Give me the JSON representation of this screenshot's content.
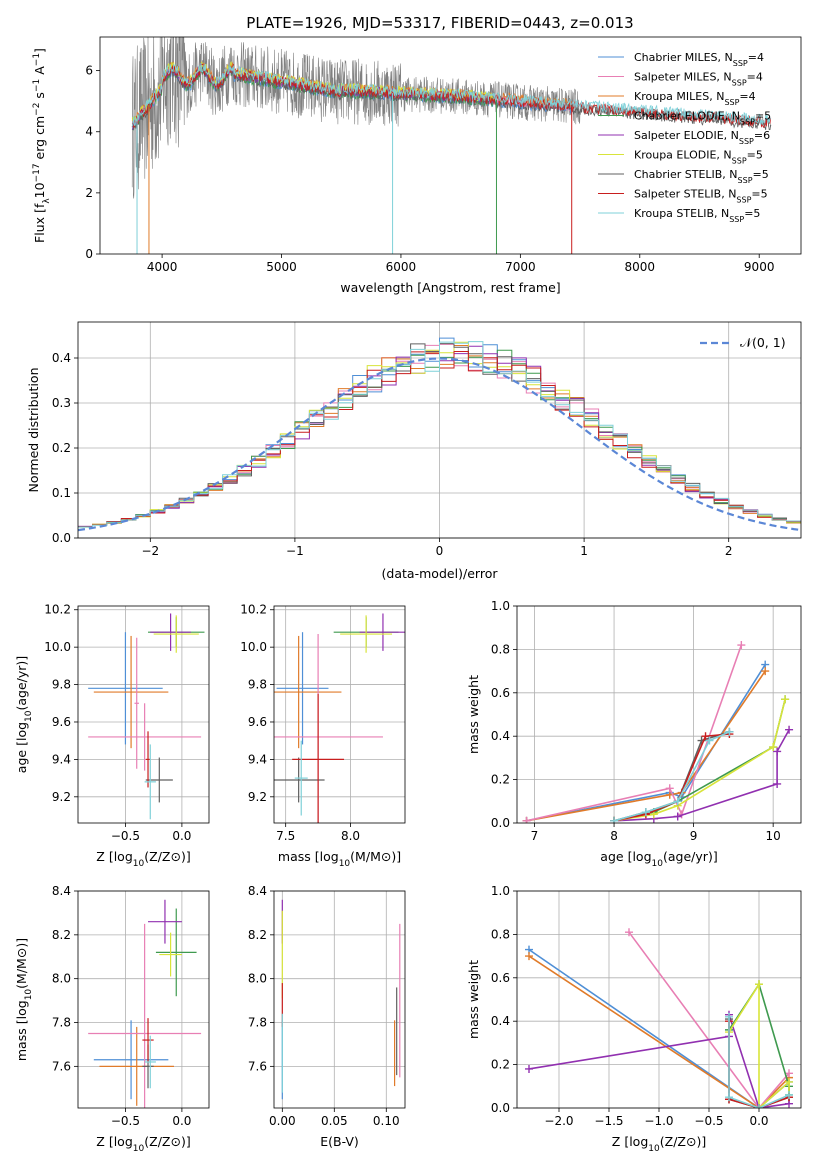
{
  "title": "PLATE=1926, MJD=53317, FIBERID=0443, z=0.013",
  "colors": {
    "chabrier_miles": "#4f8fd6",
    "salpeter_miles": "#e87fb4",
    "kroupa_miles": "#e07b2a",
    "chabrier_elodie": "#3f9a4f",
    "salpeter_elodie": "#9130b0",
    "kroupa_elodie": "#d8e43a",
    "chabrier_stelib": "#606060",
    "salpeter_stelib": "#c81e1e",
    "kroupa_stelib": "#7fd0d8",
    "data": "#808080",
    "normal": "#5b87d6"
  },
  "chart_data": [
    {
      "id": "spectrum",
      "type": "line",
      "xlabel": "wavelength [Angstrom, rest frame]",
      "ylabel": "Flux [f_λ10^-17 erg cm^-2 s^-1 A^-1]",
      "xlim": [
        3480,
        9350
      ],
      "ylim": [
        0,
        7.1
      ],
      "xticks": [
        4000,
        5000,
        6000,
        7000,
        8000,
        9000
      ],
      "yticks": [
        0,
        2,
        4,
        6
      ],
      "x_range": [
        3750,
        9100
      ],
      "legend_position": "upper-right",
      "legend": [
        {
          "name": "Chabrier MILES, N",
          "sub": "SSP",
          "suffix": "=4"
        },
        {
          "name": "Salpeter MILES, N",
          "sub": "SSP",
          "suffix": "=4"
        },
        {
          "name": "Kroupa MILES, N",
          "sub": "SSP",
          "suffix": "=4"
        },
        {
          "name": "Chabrier ELODIE, N",
          "sub": "SSP",
          "suffix": "=5"
        },
        {
          "name": "Salpeter ELODIE, N",
          "sub": "SSP",
          "suffix": "=6"
        },
        {
          "name": "Kroupa ELODIE, N",
          "sub": "SSP",
          "suffix": "=5"
        },
        {
          "name": "Chabrier STELIB, N",
          "sub": "SSP",
          "suffix": "=5"
        },
        {
          "name": "Salpeter STELIB, N",
          "sub": "SSP",
          "suffix": "=5"
        },
        {
          "name": "Kroupa STELIB, N",
          "sub": "SSP",
          "suffix": "=5"
        }
      ]
    },
    {
      "id": "residuals",
      "type": "line",
      "xlabel": "(data-model)/error",
      "ylabel": "Normed distribution",
      "xlim": [
        -2.5,
        2.5
      ],
      "ylim": [
        0,
        0.48
      ],
      "xticks": [
        -2,
        -1,
        0,
        1,
        2
      ],
      "yticks": [
        0.0,
        0.1,
        0.2,
        0.3,
        0.4
      ],
      "legend": "𝒩(0, 1)",
      "legend_position": "upper-right",
      "grid": true,
      "series_step_width": 0.1
    },
    {
      "id": "age_vs_Z",
      "type": "scatter",
      "xlabel": "Z [log10(Z/Z⊙)]",
      "ylabel": "age [log10(age/yr)]",
      "xlim": [
        -0.92,
        0.24
      ],
      "ylim": [
        9.06,
        10.22
      ],
      "xticks": [
        -0.5,
        0.0
      ],
      "yticks": [
        9.2,
        9.4,
        9.6,
        9.8,
        10.0,
        10.2
      ],
      "grid": true,
      "points": [
        {
          "model": "chabrier_miles",
          "x": -0.5,
          "y": 9.78,
          "xerr": 0.33,
          "yerr": 0.3
        },
        {
          "model": "kroupa_miles",
          "x": -0.45,
          "y": 9.76,
          "xerr": 0.33,
          "yerr": 0.3
        },
        {
          "model": "salpeter_miles",
          "x": -0.33,
          "y": 9.52,
          "xerr": 0.5,
          "yerr": 0.18
        },
        {
          "model": "salpeter_miles",
          "x": -0.4,
          "y": 9.7,
          "xerr": 0.02,
          "yerr": 0.35
        },
        {
          "model": "chabrier_elodie",
          "x": -0.05,
          "y": 10.08,
          "xerr": 0.25,
          "yerr": 0.08
        },
        {
          "model": "salpeter_elodie",
          "x": -0.1,
          "y": 10.08,
          "xerr": 0.18,
          "yerr": 0.1
        },
        {
          "model": "kroupa_elodie",
          "x": -0.05,
          "y": 10.07,
          "xerr": 0.2,
          "yerr": 0.1
        },
        {
          "model": "chabrier_stelib",
          "x": -0.2,
          "y": 9.29,
          "xerr": 0.12,
          "yerr": 0.12
        },
        {
          "model": "salpeter_stelib",
          "x": -0.3,
          "y": 9.4,
          "xerr": 0.02,
          "yerr": 0.15
        },
        {
          "model": "kroupa_stelib",
          "x": -0.28,
          "y": 9.28,
          "xerr": 0.05,
          "yerr": 0.2
        }
      ]
    },
    {
      "id": "age_vs_mass",
      "type": "scatter",
      "xlabel": "mass [log10(M/M⊙)]",
      "ylabel": "",
      "xlim": [
        7.41,
        8.42
      ],
      "ylim": [
        9.06,
        10.22
      ],
      "xticks": [
        7.5,
        8.0
      ],
      "yticks": [
        9.2,
        9.4,
        9.6,
        9.8,
        10.0,
        10.2
      ],
      "grid": true,
      "points": [
        {
          "model": "chabrier_miles",
          "x": 7.63,
          "y": 9.78,
          "xerr": 0.2,
          "yerr": 0.3
        },
        {
          "model": "kroupa_miles",
          "x": 7.6,
          "y": 9.76,
          "xerr": 0.33,
          "yerr": 0.3
        },
        {
          "model": "salpeter_miles",
          "x": 7.75,
          "y": 9.52,
          "xerr": 0.5,
          "yerr": 0.55
        },
        {
          "model": "chabrier_elodie",
          "x": 8.12,
          "y": 10.08,
          "xerr": 0.25,
          "yerr": 0.08
        },
        {
          "model": "salpeter_elodie",
          "x": 8.25,
          "y": 10.08,
          "xerr": 0.18,
          "yerr": 0.1
        },
        {
          "model": "kroupa_elodie",
          "x": 8.12,
          "y": 10.07,
          "xerr": 0.2,
          "yerr": 0.1
        },
        {
          "model": "chabrier_stelib",
          "x": 7.6,
          "y": 9.29,
          "xerr": 0.2,
          "yerr": 0.12
        },
        {
          "model": "salpeter_stelib",
          "x": 7.75,
          "y": 9.4,
          "xerr": 0.2,
          "yerr": 0.35
        },
        {
          "model": "kroupa_stelib",
          "x": 7.62,
          "y": 9.3,
          "xerr": 0.05,
          "yerr": 0.2
        }
      ]
    },
    {
      "id": "weight_vs_age",
      "type": "line",
      "xlabel": "age [log10(age/yr)]",
      "ylabel": "mass weight",
      "xlim": [
        6.78,
        10.35
      ],
      "ylim": [
        0,
        1.0
      ],
      "xticks": [
        7,
        8,
        9,
        10
      ],
      "yticks": [
        0.0,
        0.2,
        0.4,
        0.6,
        0.8,
        1.0
      ],
      "grid": true,
      "series": [
        {
          "model": "chabrier_miles",
          "x": [
            6.9,
            8.7,
            8.85,
            9.9
          ],
          "y": [
            0.01,
            0.14,
            0.12,
            0.73
          ]
        },
        {
          "model": "kroupa_miles",
          "x": [
            6.9,
            8.7,
            8.85,
            9.9
          ],
          "y": [
            0.01,
            0.13,
            0.14,
            0.7
          ]
        },
        {
          "model": "salpeter_miles",
          "x": [
            6.9,
            8.7,
            8.85,
            9.6
          ],
          "y": [
            0.01,
            0.16,
            0.04,
            0.82
          ]
        },
        {
          "model": "chabrier_elodie",
          "x": [
            8.0,
            8.5,
            8.8,
            10.0,
            10.15
          ],
          "y": [
            0.01,
            0.05,
            0.1,
            0.35,
            0.57
          ]
        },
        {
          "model": "salpeter_elodie",
          "x": [
            8.0,
            8.5,
            8.8,
            10.05,
            10.05,
            10.2
          ],
          "y": [
            0.01,
            0.02,
            0.03,
            0.18,
            0.33,
            0.43
          ]
        },
        {
          "model": "kroupa_elodie",
          "x": [
            8.0,
            8.5,
            8.8,
            10.0,
            10.15
          ],
          "y": [
            0.01,
            0.04,
            0.08,
            0.35,
            0.57
          ]
        },
        {
          "model": "chabrier_stelib",
          "x": [
            8.0,
            8.4,
            8.8,
            9.1,
            9.45
          ],
          "y": [
            0.01,
            0.05,
            0.1,
            0.38,
            0.42
          ]
        },
        {
          "model": "salpeter_stelib",
          "x": [
            8.0,
            8.4,
            8.8,
            9.15,
            9.45
          ],
          "y": [
            0.01,
            0.04,
            0.1,
            0.4,
            0.41
          ]
        },
        {
          "model": "kroupa_stelib",
          "x": [
            8.0,
            8.4,
            8.8,
            9.2,
            9.45
          ],
          "y": [
            0.01,
            0.05,
            0.1,
            0.38,
            0.42
          ]
        }
      ]
    },
    {
      "id": "mass_vs_Z",
      "type": "scatter",
      "xlabel": "Z [log10(Z/Z⊙)]",
      "ylabel": "mass [log10(M/M⊙)]",
      "xlim": [
        -0.92,
        0.24
      ],
      "ylim": [
        7.41,
        8.4
      ],
      "xticks": [
        -0.5,
        0.0
      ],
      "yticks": [
        7.6,
        7.8,
        8.0,
        8.2,
        8.4
      ],
      "grid": true,
      "points": [
        {
          "model": "chabrier_miles",
          "x": -0.45,
          "y": 7.63,
          "xerr": 0.33,
          "yerr": 0.18
        },
        {
          "model": "kroupa_miles",
          "x": -0.4,
          "y": 7.6,
          "xerr": 0.33,
          "yerr": 0.18
        },
        {
          "model": "salpeter_miles",
          "x": -0.33,
          "y": 7.75,
          "xerr": 0.5,
          "yerr": 0.5
        },
        {
          "model": "chabrier_elodie",
          "x": -0.05,
          "y": 8.12,
          "xerr": 0.18,
          "yerr": 0.2
        },
        {
          "model": "salpeter_elodie",
          "x": -0.15,
          "y": 8.26,
          "xerr": 0.15,
          "yerr": 0.1
        },
        {
          "model": "kroupa_elodie",
          "x": -0.1,
          "y": 8.11,
          "xerr": 0.1,
          "yerr": 0.1
        },
        {
          "model": "chabrier_stelib",
          "x": -0.3,
          "y": 7.6,
          "xerr": 0.05,
          "yerr": 0.1
        },
        {
          "model": "salpeter_stelib",
          "x": -0.3,
          "y": 7.72,
          "xerr": 0.05,
          "yerr": 0.1
        },
        {
          "model": "kroupa_stelib",
          "x": -0.28,
          "y": 7.62,
          "xerr": 0.05,
          "yerr": 0.12
        }
      ]
    },
    {
      "id": "mass_vs_ebv",
      "type": "scatter",
      "xlabel": "E(B-V)",
      "ylabel": "",
      "xlim": [
        -0.008,
        0.118
      ],
      "ylim": [
        7.41,
        8.4
      ],
      "xticks": [
        0.0,
        0.05,
        0.1
      ],
      "xtick_labels": [
        "0.00",
        "0.05",
        "0.10"
      ],
      "yticks": [
        7.6,
        7.8,
        8.0,
        8.2,
        8.4
      ],
      "grid": true,
      "points": [
        {
          "model": "chabrier_miles",
          "x": 0.0,
          "y": 7.63,
          "yerr": 0.18
        },
        {
          "model": "salpeter_elodie",
          "x": 0.0,
          "y": 8.26,
          "yerr": 0.1
        },
        {
          "model": "kroupa_elodie",
          "x": 0.0,
          "y": 8.11,
          "yerr": 0.2
        },
        {
          "model": "salpeter_stelib",
          "x": 0.0,
          "y": 7.88,
          "yerr": 0.1
        },
        {
          "model": "kroupa_stelib",
          "x": 0.0,
          "y": 7.66,
          "yerr": 0.18
        },
        {
          "model": "kroupa_miles",
          "x": 0.108,
          "y": 7.66,
          "yerr": 0.15
        },
        {
          "model": "chabrier_stelib",
          "x": 0.11,
          "y": 7.76,
          "yerr": 0.2
        },
        {
          "model": "salpeter_miles",
          "x": 0.113,
          "y": 7.9,
          "yerr": 0.35
        }
      ]
    },
    {
      "id": "weight_vs_Z",
      "type": "line",
      "xlabel": "Z [log10(Z/Z⊙)]",
      "ylabel": "mass weight",
      "xlim": [
        -2.42,
        0.42
      ],
      "ylim": [
        0,
        1.0
      ],
      "xticks": [
        -2.0,
        -1.5,
        -1.0,
        -0.5,
        0.0
      ],
      "yticks": [
        0.0,
        0.2,
        0.4,
        0.6,
        0.8,
        1.0
      ],
      "grid": true,
      "series": [
        {
          "model": "chabrier_miles",
          "x": [
            -2.3,
            0.0,
            0.3
          ],
          "y": [
            0.73,
            0.0,
            0.12
          ]
        },
        {
          "model": "kroupa_miles",
          "x": [
            -2.3,
            0.0,
            0.3
          ],
          "y": [
            0.7,
            0.0,
            0.14
          ]
        },
        {
          "model": "salpeter_miles",
          "x": [
            -1.3,
            0.0,
            0.3
          ],
          "y": [
            0.81,
            0.0,
            0.16
          ]
        },
        {
          "model": "salpeter_elodie",
          "x": [
            -2.3,
            -0.3,
            -0.3,
            0.0,
            0.3,
            0.3
          ],
          "y": [
            0.18,
            0.33,
            0.43,
            0.0,
            0.02,
            0.05
          ]
        },
        {
          "model": "chabrier_elodie",
          "x": [
            -0.3,
            0.0,
            0.3,
            0.3
          ],
          "y": [
            0.36,
            0.57,
            0.1,
            0.06
          ]
        },
        {
          "model": "kroupa_elodie",
          "x": [
            -0.3,
            0.0,
            0.0,
            0.3,
            0.3
          ],
          "y": [
            0.35,
            0.57,
            0.0,
            0.12,
            0.05
          ]
        },
        {
          "model": "chabrier_stelib",
          "x": [
            -0.3,
            -0.3,
            0.0,
            0.3
          ],
          "y": [
            0.41,
            0.04,
            0.0,
            0.05
          ]
        },
        {
          "model": "salpeter_stelib",
          "x": [
            -0.3,
            -0.3,
            0.0,
            0.3
          ],
          "y": [
            0.4,
            0.04,
            0.0,
            0.05
          ]
        },
        {
          "model": "kroupa_stelib",
          "x": [
            -0.3,
            -0.3,
            0.0,
            0.3
          ],
          "y": [
            0.42,
            0.05,
            0.0,
            0.06
          ]
        }
      ]
    }
  ]
}
